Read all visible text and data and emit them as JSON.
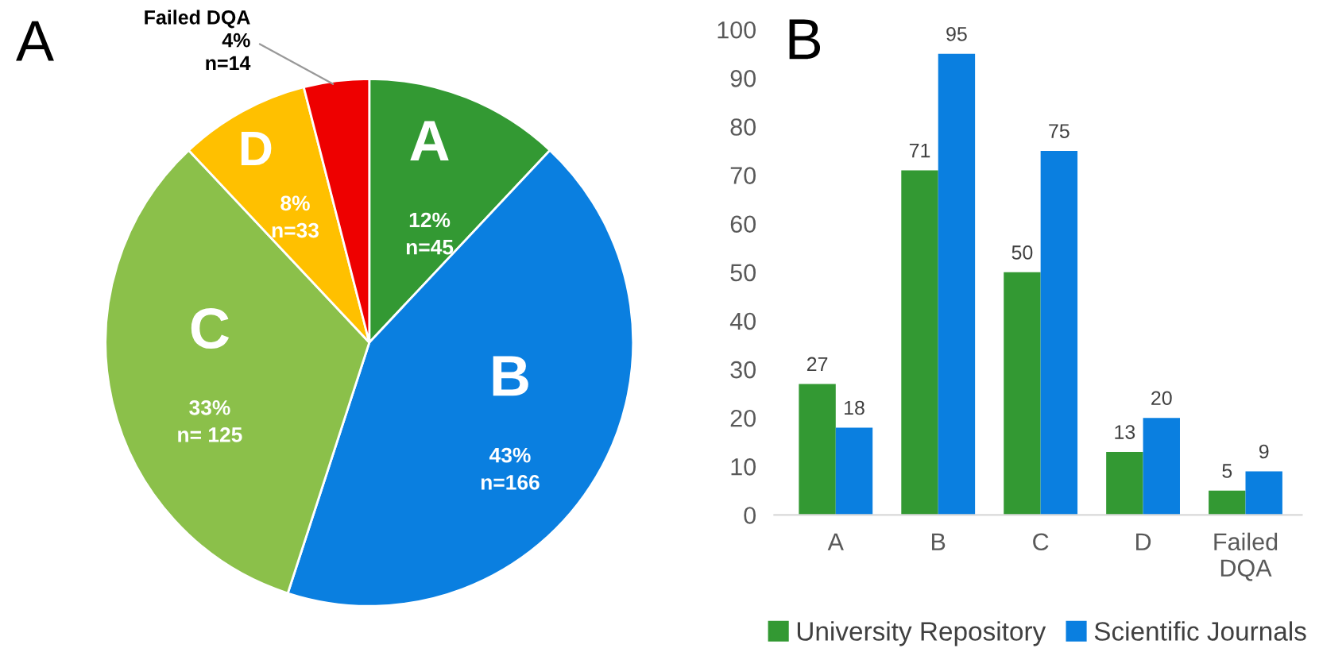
{
  "chart_data": [
    {
      "type": "pie",
      "title": "A",
      "categories": [
        "A",
        "B",
        "C",
        "D",
        "Failed DQA"
      ],
      "values": [
        12,
        43,
        33,
        8,
        4
      ],
      "colors": [
        "#339933",
        "#0a7fe0",
        "#8bc04a",
        "#ffc000",
        "#ee0000"
      ],
      "value_labels": [
        "12%\nn=45",
        "43%\nn=166",
        "33%\nn= 125",
        "8%\nn=33",
        "4%\nn=14"
      ]
    },
    {
      "type": "bar",
      "title": "B",
      "categories": [
        "A",
        "B",
        "C",
        "D",
        "Failed\nDQA"
      ],
      "series": [
        {
          "name": "University Repository",
          "color": "#339933",
          "values": [
            27,
            71,
            50,
            13,
            5
          ]
        },
        {
          "name": "Scientific Journals",
          "color": "#0a7fe0",
          "values": [
            18,
            95,
            75,
            20,
            9
          ]
        }
      ],
      "ylim": [
        0,
        100
      ],
      "yticks": [
        0,
        10,
        20,
        30,
        40,
        50,
        60,
        70,
        80,
        90,
        100
      ],
      "data_labels": true,
      "grid": false,
      "legend": "bottom"
    }
  ]
}
